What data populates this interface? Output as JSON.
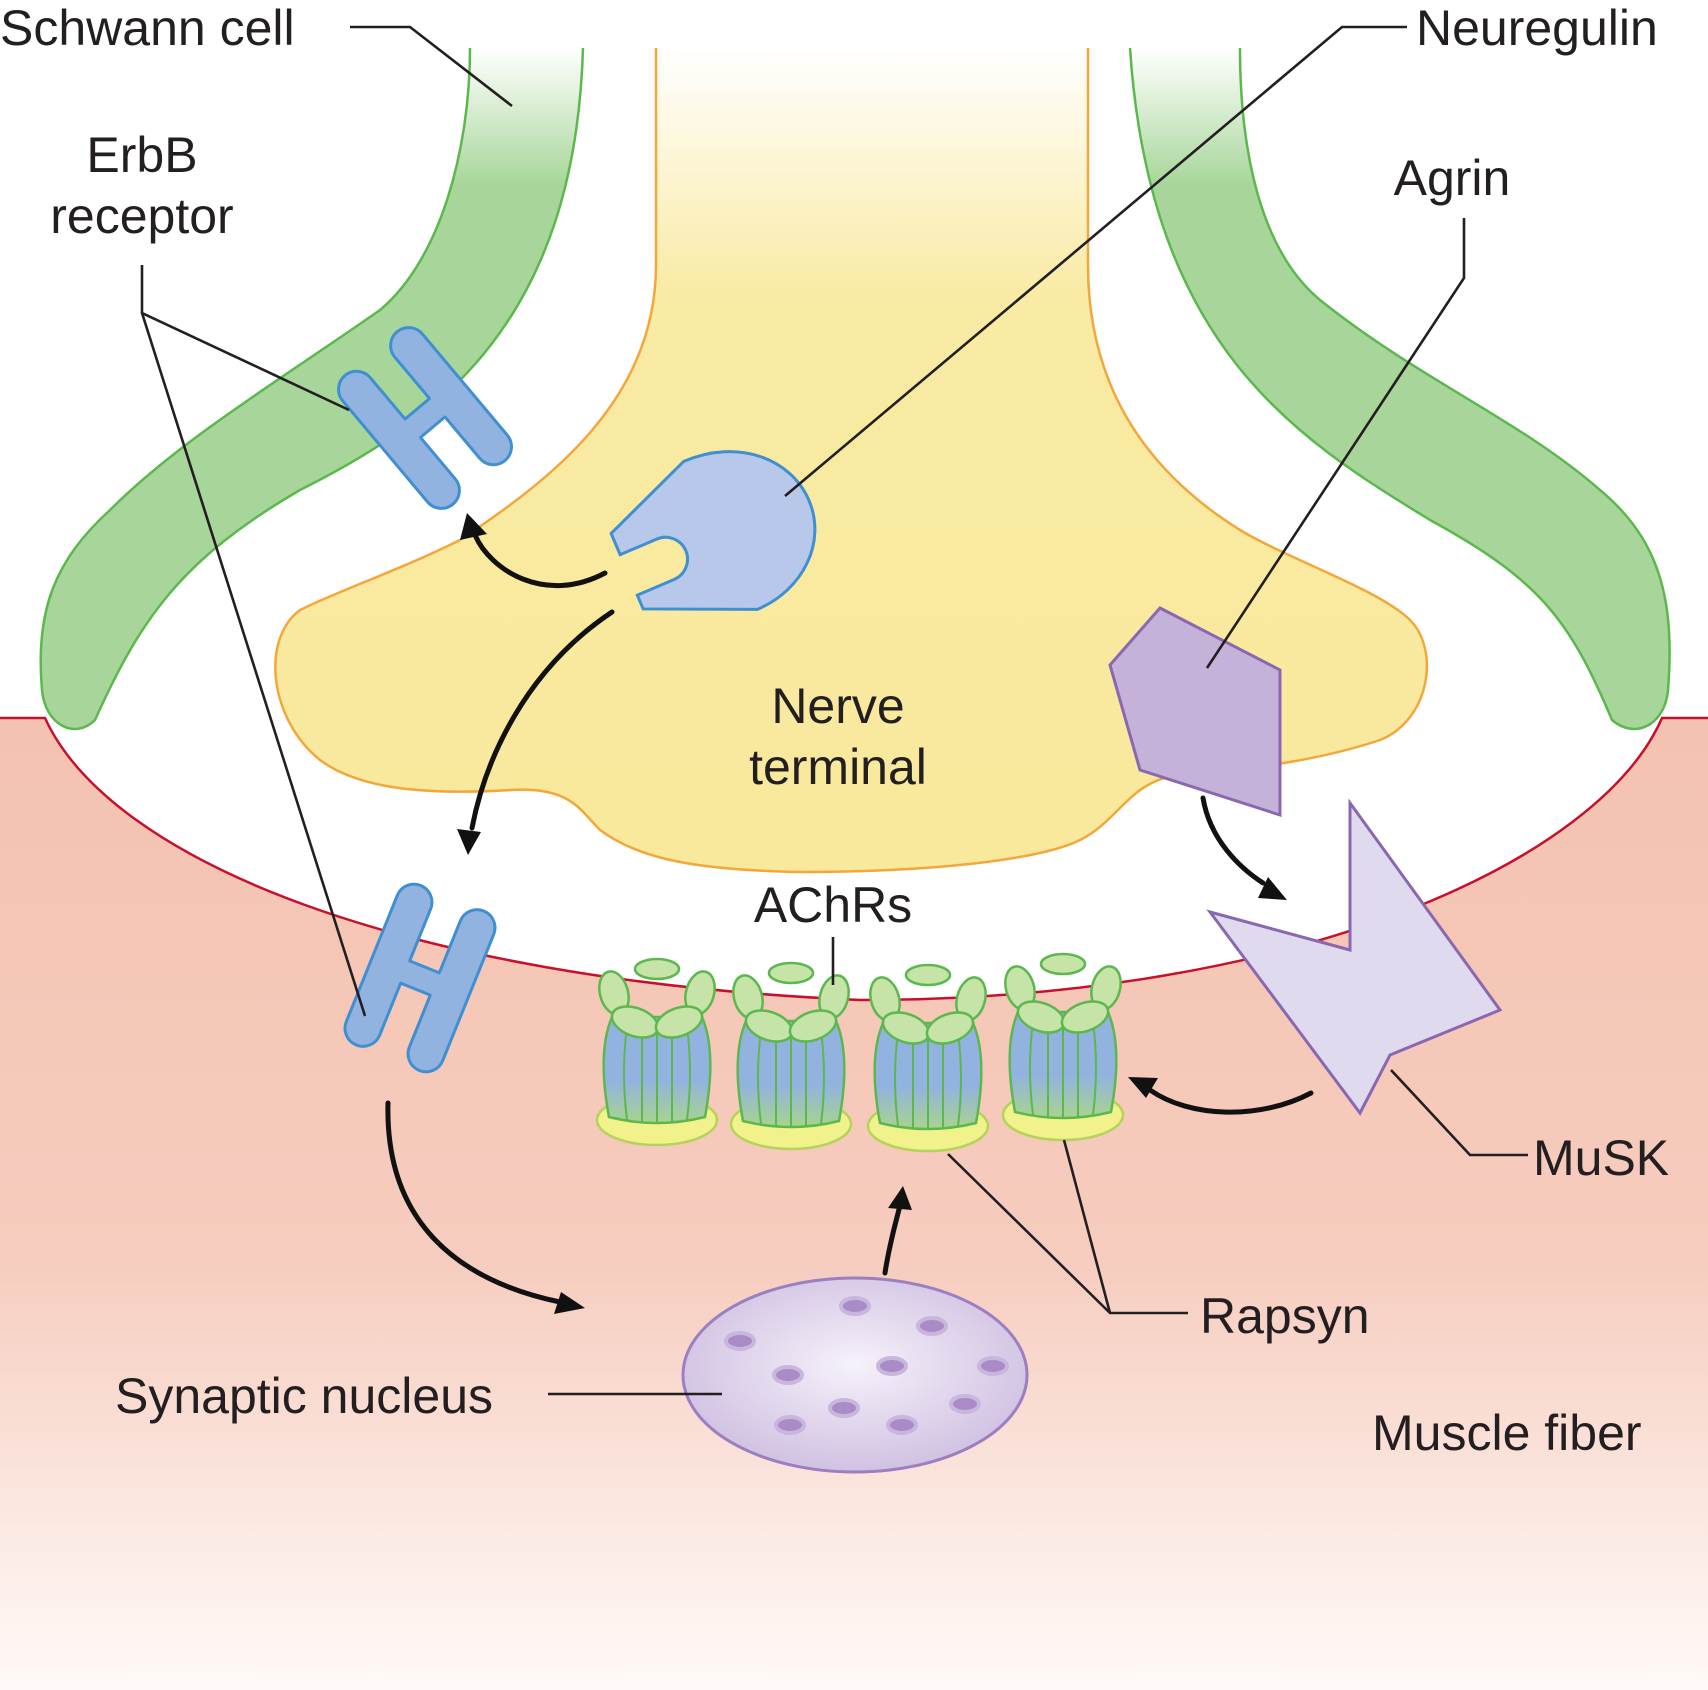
{
  "labels": {
    "schwann_cell": "Schwann cell",
    "erbb_line1": "ErbB",
    "erbb_line2": "receptor",
    "neuregulin": "Neuregulin",
    "agrin": "Agrin",
    "nerve_line1": "Nerve",
    "nerve_line2": "terminal",
    "achrs": "AChRs",
    "musk": "MuSK",
    "rapsyn": "Rapsyn",
    "synaptic_nucleus": "Synaptic nucleus",
    "muscle_fiber": "Muscle fiber"
  },
  "colors": {
    "muscle_fiber": "#f5c6b5",
    "muscle_membrane": "#c8102e",
    "schwann_cell": "#a8d69a",
    "schwann_outline": "#5cb84e",
    "nerve_terminal": "#f9e9a0",
    "nerve_outline": "#f3a73b",
    "erbb_fill": "#92b3e0",
    "erbb_outline": "#3f8fd1",
    "neuregulin_fill": "#b7c8ea",
    "agrin_fill": "#c4b2d8",
    "agrin_outline": "#8a68b1",
    "musk_fill": "#e0daee",
    "achr_fill": "#92b3e0",
    "achr_green": "#a7d68e",
    "rapsyn_fill": "#f2f28c",
    "nucleus_fill": "#d9cce6",
    "nucleus_outline": "#9b7fc0"
  }
}
